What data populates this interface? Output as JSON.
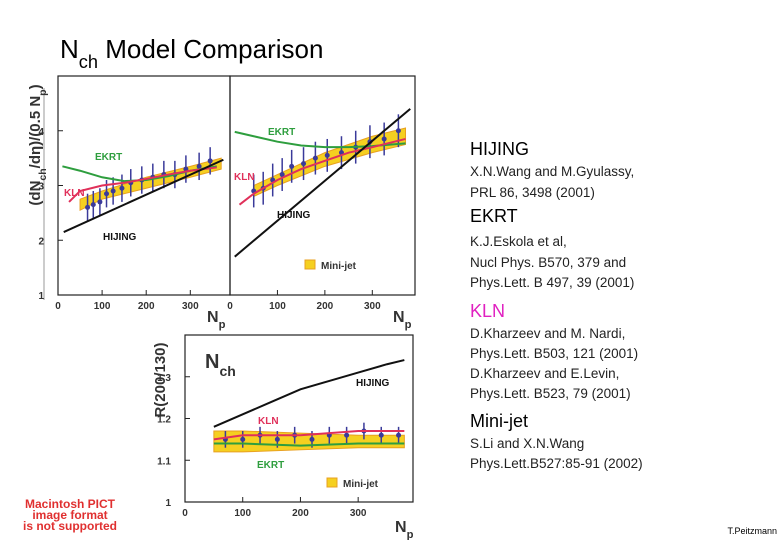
{
  "title": [
    "N",
    "ch",
    " Model Comparison"
  ],
  "chart_data": [
    {
      "type": "line",
      "xlim": [
        0,
        390
      ],
      "ylim": [
        1,
        5
      ],
      "xticks": [
        0,
        100,
        200,
        300
      ],
      "yticks": [
        1,
        2,
        3,
        4
      ],
      "x_label": [
        "N",
        "p"
      ],
      "y_label": [
        "(dN",
        "ch",
        "/dη)/(0.5 N",
        "p",
        ")"
      ],
      "band": {
        "color": "#f5d020",
        "x": [
          50,
          100,
          200,
          300,
          370
        ],
        "lower": [
          2.55,
          2.75,
          2.95,
          3.15,
          3.3
        ],
        "upper": [
          2.75,
          2.9,
          3.15,
          3.35,
          3.5
        ]
      },
      "series": [
        {
          "color": "#3a3a9a",
          "x": [
            67,
            80,
            95,
            110,
            125,
            145,
            165,
            190,
            215,
            240,
            265,
            290,
            320,
            345
          ],
          "values": [
            2.6,
            2.65,
            2.7,
            2.85,
            2.9,
            2.95,
            3.05,
            3.1,
            3.15,
            3.2,
            3.2,
            3.3,
            3.35,
            3.45
          ],
          "errors": [
            0.25,
            0.25,
            0.25,
            0.25,
            0.25,
            0.25,
            0.25,
            0.25,
            0.25,
            0.25,
            0.25,
            0.25,
            0.25,
            0.25
          ]
        },
        {
          "name": "EKRT",
          "color": "#2e9e3e",
          "x": [
            10,
            50,
            100,
            150,
            200,
            250,
            300,
            360
          ],
          "values": [
            3.35,
            3.27,
            3.15,
            3.08,
            3.1,
            3.17,
            3.27,
            3.35
          ]
        },
        {
          "name": "KLN",
          "color": "#e0305a",
          "x": [
            25,
            50,
            100,
            150,
            200,
            250,
            300,
            360
          ],
          "values": [
            2.7,
            2.9,
            3.0,
            3.05,
            3.12,
            3.2,
            3.27,
            3.33
          ]
        },
        {
          "name": "HIJING",
          "color": "#111111",
          "x": [
            13,
            375
          ],
          "values": [
            2.15,
            3.47
          ]
        }
      ]
    },
    {
      "type": "line",
      "xlim": [
        0,
        390
      ],
      "ylim": [
        1,
        5
      ],
      "xticks": [
        0,
        100,
        200,
        300
      ],
      "x_label": [
        "N",
        "p"
      ],
      "band": {
        "name": "Mini-jet",
        "color": "#f5d020",
        "x": [
          50,
          100,
          200,
          300,
          370
        ],
        "lower": [
          2.8,
          3.0,
          3.35,
          3.6,
          3.75
        ],
        "upper": [
          3.0,
          3.2,
          3.6,
          3.9,
          4.05
        ]
      },
      "series": [
        {
          "color": "#3a3a9a",
          "x": [
            50,
            70,
            90,
            110,
            130,
            155,
            180,
            205,
            235,
            265,
            295,
            325,
            355
          ],
          "values": [
            2.9,
            2.95,
            3.1,
            3.2,
            3.35,
            3.4,
            3.5,
            3.55,
            3.6,
            3.7,
            3.8,
            3.85,
            4.0
          ],
          "errors": [
            0.3,
            0.3,
            0.3,
            0.3,
            0.3,
            0.3,
            0.3,
            0.3,
            0.3,
            0.3,
            0.3,
            0.3,
            0.3
          ]
        },
        {
          "name": "EKRT",
          "color": "#2e9e3e",
          "x": [
            10,
            50,
            100,
            150,
            200,
            250,
            300,
            370
          ],
          "values": [
            3.98,
            3.9,
            3.8,
            3.73,
            3.7,
            3.7,
            3.72,
            3.77
          ]
        },
        {
          "name": "KLN",
          "color": "#e0305a",
          "x": [
            20,
            50,
            100,
            150,
            200,
            250,
            300,
            370
          ],
          "values": [
            2.65,
            2.85,
            3.1,
            3.3,
            3.45,
            3.6,
            3.7,
            3.85
          ]
        },
        {
          "name": "HIJING",
          "color": "#111111",
          "x": [
            10,
            380
          ],
          "values": [
            1.7,
            4.4
          ]
        }
      ]
    },
    {
      "type": "line",
      "xlim": [
        0,
        395
      ],
      "ylim": [
        1,
        1.4
      ],
      "xticks": [
        0,
        100,
        200,
        300
      ],
      "yticks": [
        1,
        1.1,
        1.2,
        1.3
      ],
      "x_label": [
        "N",
        "p"
      ],
      "y_label": [
        "R(200/130)"
      ],
      "annotation": [
        "N",
        "ch"
      ],
      "band": {
        "name": "Mini-jet",
        "color": "#f5d020",
        "x": [
          50,
          100,
          200,
          300,
          380
        ],
        "lower": [
          1.12,
          1.12,
          1.125,
          1.13,
          1.13
        ],
        "upper": [
          1.17,
          1.17,
          1.165,
          1.16,
          1.16
        ]
      },
      "series": [
        {
          "color": "#3a3a9a",
          "x": [
            70,
            100,
            130,
            160,
            190,
            220,
            250,
            280,
            310,
            340,
            370
          ],
          "values": [
            1.15,
            1.15,
            1.16,
            1.15,
            1.16,
            1.15,
            1.16,
            1.16,
            1.17,
            1.16,
            1.16
          ],
          "errors": [
            0.02,
            0.02,
            0.02,
            0.02,
            0.02,
            0.02,
            0.02,
            0.02,
            0.02,
            0.02,
            0.02
          ]
        },
        {
          "name": "HIJING",
          "color": "#111111",
          "x": [
            50,
            100,
            150,
            200,
            250,
            300,
            350,
            380
          ],
          "values": [
            1.18,
            1.21,
            1.24,
            1.27,
            1.29,
            1.31,
            1.33,
            1.34
          ]
        },
        {
          "name": "KLN",
          "color": "#e0305a",
          "x": [
            50,
            100,
            200,
            300,
            380
          ],
          "values": [
            1.15,
            1.16,
            1.16,
            1.17,
            1.17
          ]
        },
        {
          "name": "EKRT",
          "color": "#2e9e3e",
          "x": [
            50,
            100,
            200,
            300,
            380
          ],
          "values": [
            1.14,
            1.14,
            1.135,
            1.14,
            1.14
          ]
        }
      ]
    }
  ],
  "references": [
    {
      "heading": "HIJING",
      "color": "#000000",
      "lines": [
        "X.N.Wang and M.Gyulassy,",
        "PRL 86, 3498 (2001)"
      ]
    },
    {
      "heading": "EKRT",
      "color": "#000000",
      "lines": [
        "K.J.Eskola et al,",
        "Nucl Phys. B570, 379 and",
        "Phys.Lett. B 497, 39 (2001)"
      ]
    },
    {
      "heading": "KLN",
      "color": "#e020c0",
      "lines": [
        "D.Kharzeev and M. Nardi,",
        "Phys.Lett. B503, 121 (2001)",
        "D.Kharzeev and E.Levin,",
        "Phys.Lett. B523, 79 (2001)"
      ]
    },
    {
      "heading": "Mini-jet",
      "color": "#000000",
      "lines": [
        "S.Li and X.N.Wang",
        "Phys.Lett.B527:85-91 (2002)"
      ]
    }
  ],
  "placeholder": [
    "Macintosh PICT",
    "image format",
    "is not supported"
  ],
  "author": "T.Peitzmann"
}
